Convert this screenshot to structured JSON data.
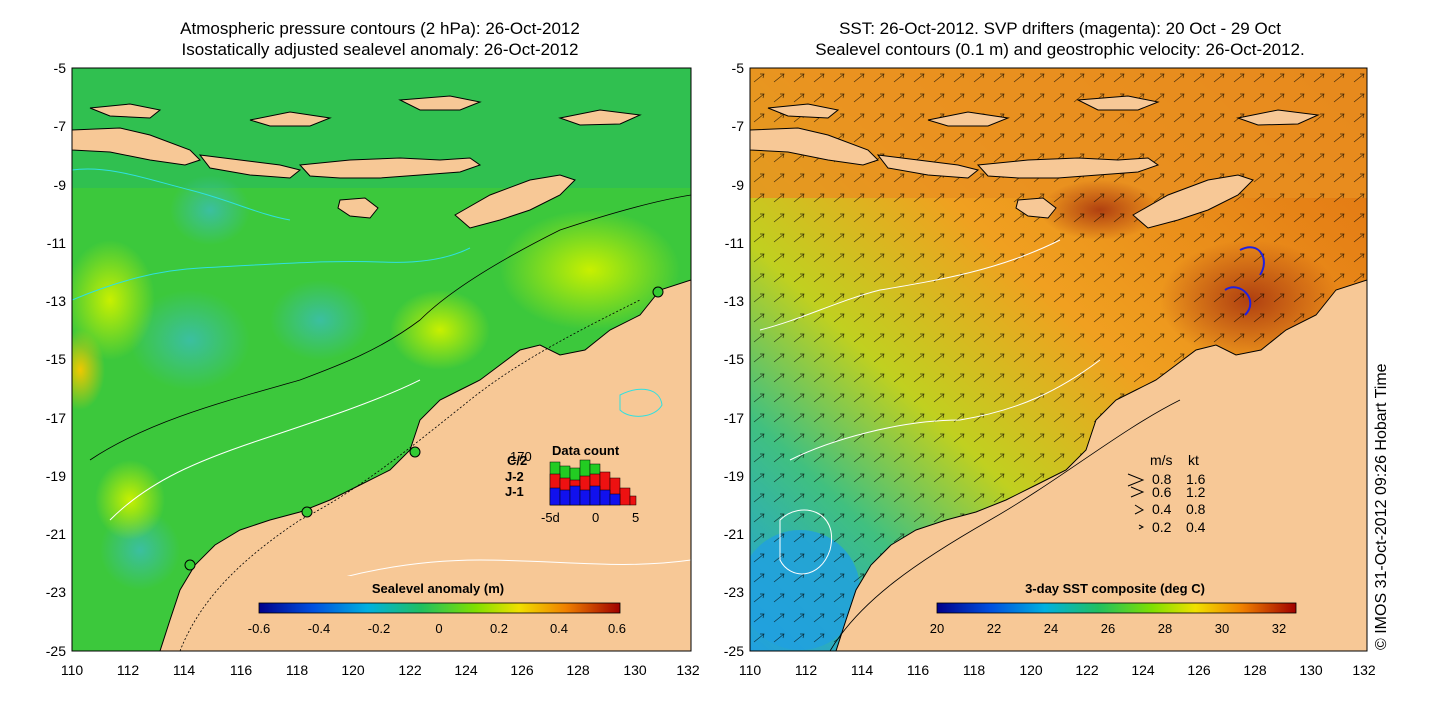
{
  "left_panel": {
    "title_line1": "Atmospheric pressure contours (2 hPa): 26-Oct-2012",
    "title_line2": "Isostatically adjusted sealevel anomaly: 26-Oct-2012",
    "colorbar": {
      "label": "Sealevel anomaly (m)",
      "ticks": [
        "-0.6",
        "-0.4",
        "-0.2",
        "0",
        "0.2",
        "0.4",
        "0.6"
      ]
    },
    "data_count": {
      "title": "Data count",
      "max_label": "170",
      "satellites": [
        {
          "name": "C/2",
          "color": "#22cc22"
        },
        {
          "name": "J-2",
          "color": "#ee1111"
        },
        {
          "name": "J-1",
          "color": "#1111ee"
        }
      ],
      "x_ticks": [
        "-5d",
        "0",
        "5"
      ]
    }
  },
  "right_panel": {
    "title_line1": "SST: 26-Oct-2012. SVP drifters (magenta): 20 Oct - 29 Oct",
    "title_line2": "Sealevel contours (0.1 m) and geostrophic velocity: 26-Oct-2012.",
    "colorbar": {
      "label": "3-day SST composite (deg C)",
      "ticks": [
        "20",
        "22",
        "24",
        "26",
        "28",
        "30",
        "32"
      ]
    },
    "velocity_legend": {
      "header_ms": "m/s",
      "header_kt": "kt",
      "rows": [
        {
          "ms": "0.8",
          "kt": "1.6"
        },
        {
          "ms": "0.6",
          "kt": "1.2"
        },
        {
          "ms": "0.4",
          "kt": "0.8"
        },
        {
          "ms": "0.2",
          "kt": "0.4"
        }
      ]
    },
    "credit": "© IMOS 31-Oct-2012 09:26 Hobart Time"
  },
  "axes": {
    "y_ticks": [
      "-5",
      "-7",
      "-9",
      "-11",
      "-13",
      "-15",
      "-17",
      "-19",
      "-21",
      "-23",
      "-25"
    ],
    "x_ticks": [
      "110",
      "112",
      "114",
      "116",
      "118",
      "120",
      "122",
      "124",
      "126",
      "128",
      "130",
      "132"
    ]
  },
  "colors": {
    "land": "#f7c896",
    "ocean_sla": "#33cc33",
    "ocean_sst": "#e8a020"
  }
}
